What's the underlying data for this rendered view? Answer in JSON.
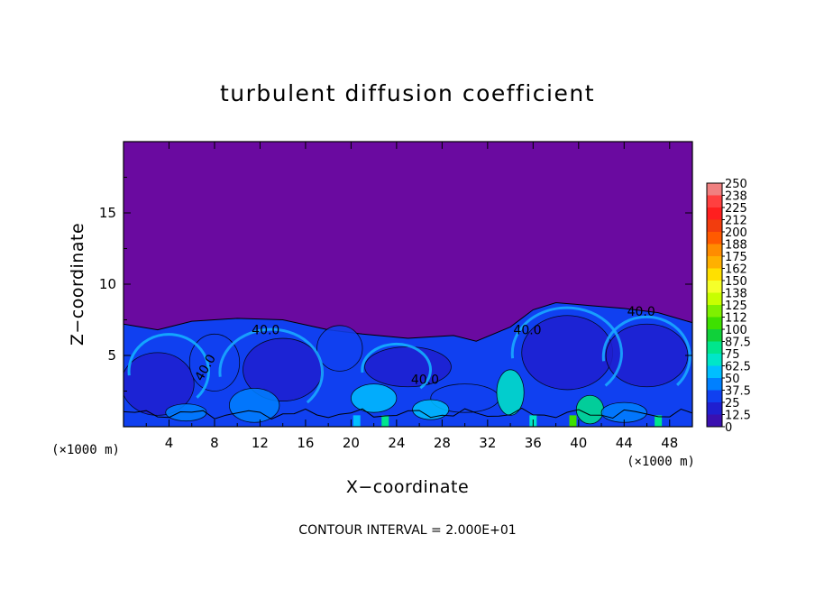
{
  "chart_data": {
    "type": "heatmap",
    "title": "turbulent diffusion coefficient",
    "xlabel": "X−coordinate",
    "ylabel": "Z−coordinate",
    "x_unit": "(×1000 m)",
    "y_unit": "(×1000 m)",
    "xlim": [
      0,
      50
    ],
    "ylim": [
      0,
      20
    ],
    "x_ticks": [
      "4",
      "8",
      "12",
      "16",
      "20",
      "24",
      "28",
      "32",
      "36",
      "40",
      "44",
      "48"
    ],
    "y_ticks": [
      "5",
      "10",
      "15"
    ],
    "colorbar_levels": [
      "250",
      "238",
      "225",
      "212",
      "200",
      "188",
      "175",
      "162",
      "150",
      "138",
      "125",
      "112",
      "100",
      "87.5",
      "75",
      "62.5",
      "50",
      "37.5",
      "25",
      "12.5",
      "0"
    ],
    "colorbar_colors": [
      "#f08080",
      "#ff4040",
      "#ff1f1f",
      "#f23d0e",
      "#ff5a00",
      "#ff8c00",
      "#ffb000",
      "#ffe000",
      "#f5ff2a",
      "#c8ff00",
      "#7ff000",
      "#3ee000",
      "#10d03a",
      "#00e68c",
      "#00e6c8",
      "#00bfff",
      "#0080ff",
      "#1040f0",
      "#1f1fd0",
      "#3a10b0",
      "#6a0aa0"
    ],
    "contour_interval_text": "CONTOUR INTERVAL = 2.000E+01",
    "contour_labels": [
      "40.0",
      "40.0",
      "40.0",
      "40.0",
      "40.0"
    ],
    "top_boundary": [
      [
        0,
        7.2
      ],
      [
        3,
        6.8
      ],
      [
        6,
        7.4
      ],
      [
        10,
        7.6
      ],
      [
        14,
        7.5
      ],
      [
        18,
        6.8
      ],
      [
        21,
        6.5
      ],
      [
        25,
        6.2
      ],
      [
        29,
        6.4
      ],
      [
        31,
        6.0
      ],
      [
        34,
        7.0
      ],
      [
        36,
        8.2
      ],
      [
        38,
        8.7
      ],
      [
        41,
        8.5
      ],
      [
        44,
        8.3
      ],
      [
        47,
        8.0
      ],
      [
        50,
        7.3
      ]
    ],
    "background_value": 0
  }
}
